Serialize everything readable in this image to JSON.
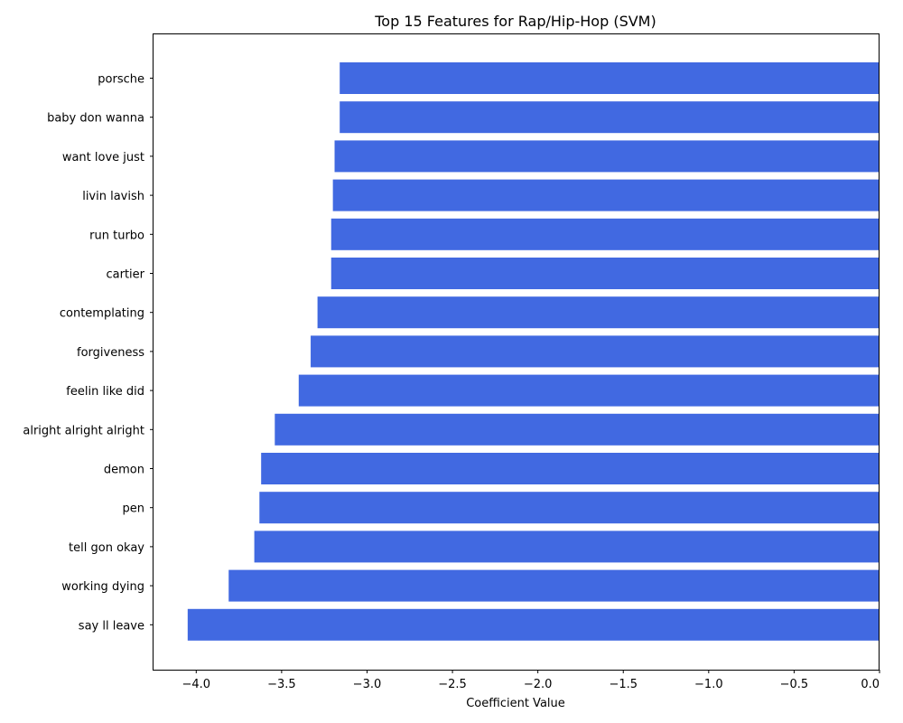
{
  "chart_data": {
    "type": "bar",
    "orientation": "horizontal",
    "title": "Top 15 Features for Rap/Hip-Hop (SVM)",
    "xlabel": "Coefficient Value",
    "ylabel": "",
    "xlim": [
      -4.25,
      0.0
    ],
    "xticks": [
      -4.0,
      -3.5,
      -3.0,
      -2.5,
      -2.0,
      -1.5,
      -1.0,
      -0.5,
      0.0
    ],
    "xtick_labels": [
      "−4.0",
      "−3.5",
      "−3.0",
      "−2.5",
      "−2.0",
      "−1.5",
      "−1.0",
      "−0.5",
      "0.0"
    ],
    "categories": [
      "porsche",
      "baby don wanna",
      "want love just",
      "livin lavish",
      "run turbo",
      "cartier",
      "contemplating",
      "forgiveness",
      "feelin like did",
      "alright alright alright",
      "demon",
      "pen",
      "tell gon okay",
      "working dying",
      "say ll leave"
    ],
    "values": [
      -3.16,
      -3.16,
      -3.19,
      -3.2,
      -3.21,
      -3.21,
      -3.29,
      -3.33,
      -3.4,
      -3.54,
      -3.62,
      -3.63,
      -3.66,
      -3.81,
      -4.05
    ],
    "bar_color": "#4169e1",
    "grid": false,
    "legend": false
  }
}
